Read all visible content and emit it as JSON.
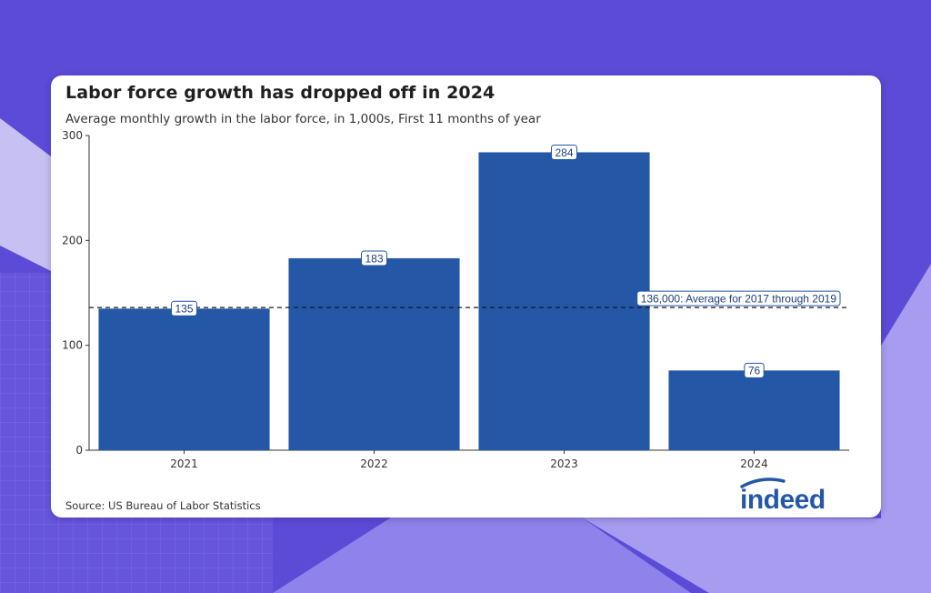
{
  "page": {
    "source": "Source: US Bureau of Labor Statistics",
    "logo": "indeed"
  },
  "colors": {
    "background": "#5b4bd6",
    "bar": "#2457a6",
    "reference_line": "#1a1a1a",
    "label_border": "#2457a6",
    "logo": "#2557a7"
  },
  "chart_data": {
    "type": "bar",
    "title": "Labor force growth has dropped off in 2024",
    "subtitle": "Average monthly growth in the labor force, in 1,000s, First 11 months of year",
    "xlabel": "",
    "ylabel": "",
    "categories": [
      "2021",
      "2022",
      "2023",
      "2024"
    ],
    "values": [
      135,
      183,
      284,
      76
    ],
    "data_labels": [
      "135",
      "183",
      "284",
      "76"
    ],
    "ylim": [
      0,
      300
    ],
    "yticks": [
      0,
      100,
      200,
      300
    ],
    "grid": false,
    "reference_line": {
      "value": 136,
      "label": "136,000: Average for 2017 through 2019"
    }
  }
}
